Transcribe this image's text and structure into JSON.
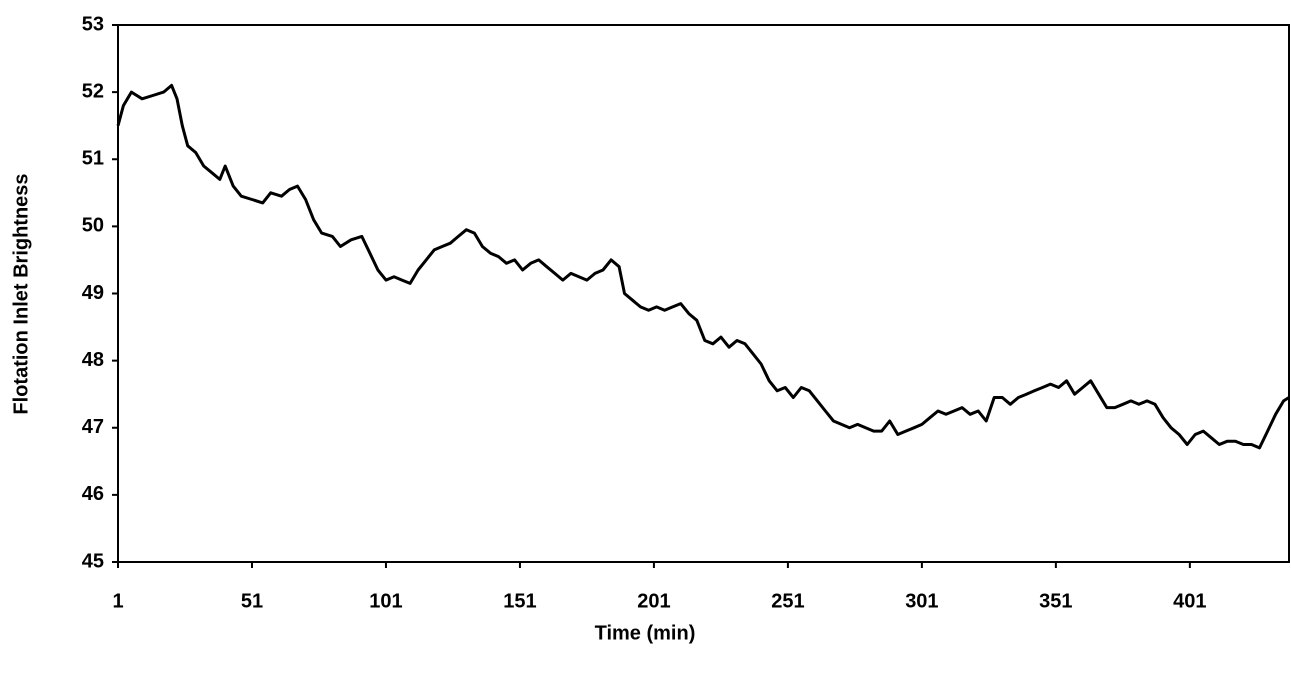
{
  "chart_data": {
    "type": "line",
    "x_label": "Time (min)",
    "y_label": "Flotation Inlet Brightness",
    "color": "#000000",
    "x": [
      1,
      3,
      6,
      10,
      14,
      18,
      21,
      23,
      25,
      27,
      30,
      33,
      36,
      39,
      41,
      44,
      47,
      51,
      55,
      58,
      62,
      65,
      68,
      71,
      74,
      77,
      81,
      84,
      88,
      92,
      95,
      98,
      101,
      104,
      107,
      110,
      113,
      116,
      119,
      122,
      125,
      128,
      131,
      134,
      137,
      140,
      143,
      146,
      149,
      152,
      155,
      158,
      161,
      164,
      167,
      170,
      173,
      176,
      179,
      182,
      185,
      188,
      190,
      193,
      196,
      199,
      202,
      205,
      208,
      211,
      214,
      217,
      220,
      223,
      226,
      229,
      232,
      235,
      238,
      241,
      244,
      247,
      250,
      253,
      256,
      259,
      262,
      265,
      268,
      271,
      274,
      277,
      280,
      283,
      286,
      289,
      292,
      295,
      298,
      301,
      304,
      307,
      310,
      313,
      316,
      319,
      322,
      325,
      328,
      331,
      334,
      337,
      340,
      343,
      346,
      349,
      352,
      355,
      358,
      361,
      364,
      367,
      370,
      373,
      376,
      379,
      382,
      385,
      388,
      391,
      394,
      397,
      400,
      403,
      406,
      409,
      412,
      415,
      418,
      421,
      424,
      427,
      430,
      433,
      436,
      438
    ],
    "values": [
      51.5,
      51.8,
      52.0,
      51.9,
      51.95,
      52.0,
      52.1,
      51.9,
      51.5,
      51.2,
      51.1,
      50.9,
      50.8,
      50.7,
      50.9,
      50.6,
      50.45,
      50.4,
      50.35,
      50.5,
      50.45,
      50.55,
      50.6,
      50.4,
      50.1,
      49.9,
      49.85,
      49.7,
      49.8,
      49.85,
      49.6,
      49.35,
      49.2,
      49.25,
      49.2,
      49.15,
      49.35,
      49.5,
      49.65,
      49.7,
      49.75,
      49.85,
      49.95,
      49.9,
      49.7,
      49.6,
      49.55,
      49.45,
      49.5,
      49.35,
      49.45,
      49.5,
      49.4,
      49.3,
      49.2,
      49.3,
      49.25,
      49.2,
      49.3,
      49.35,
      49.5,
      49.4,
      49.0,
      48.9,
      48.8,
      48.75,
      48.8,
      48.75,
      48.8,
      48.85,
      48.7,
      48.6,
      48.3,
      48.25,
      48.35,
      48.2,
      48.3,
      48.25,
      48.1,
      47.95,
      47.7,
      47.55,
      47.6,
      47.45,
      47.6,
      47.55,
      47.4,
      47.25,
      47.1,
      47.05,
      47.0,
      47.05,
      47.0,
      46.95,
      46.95,
      47.1,
      46.9,
      46.95,
      47.0,
      47.05,
      47.15,
      47.25,
      47.2,
      47.25,
      47.3,
      47.2,
      47.25,
      47.1,
      47.45,
      47.45,
      47.35,
      47.45,
      47.5,
      47.55,
      47.6,
      47.65,
      47.6,
      47.7,
      47.5,
      47.6,
      47.7,
      47.5,
      47.3,
      47.3,
      47.35,
      47.4,
      47.35,
      47.4,
      47.35,
      47.15,
      47.0,
      46.9,
      46.75,
      46.9,
      46.95,
      46.85,
      46.75,
      46.8,
      46.8,
      46.75,
      46.75,
      46.7,
      46.95,
      47.2,
      47.4,
      47.45
    ],
    "xlim": [
      1,
      438
    ],
    "xticks": [
      1,
      51,
      101,
      151,
      201,
      251,
      301,
      351,
      401
    ],
    "ylim": [
      45,
      53
    ],
    "yticks": [
      45,
      46,
      47,
      48,
      49,
      50,
      51,
      52,
      53
    ]
  }
}
